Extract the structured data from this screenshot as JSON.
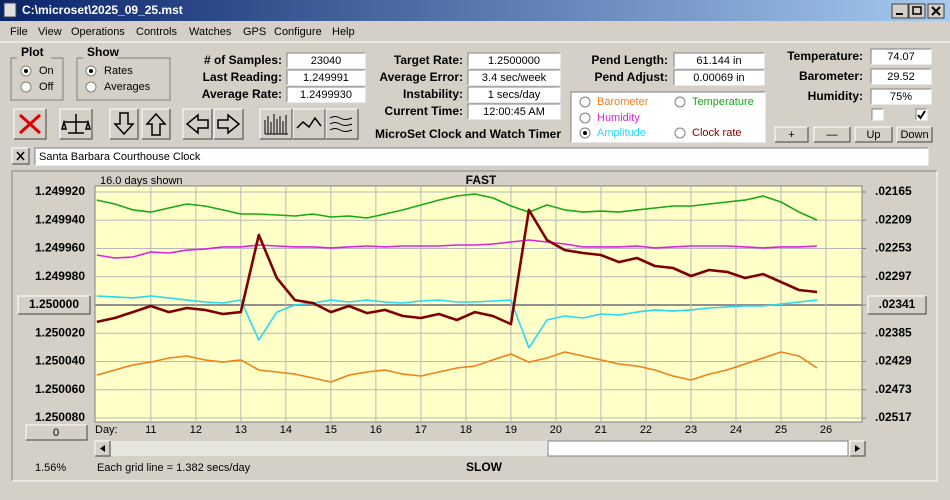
{
  "window": {
    "title": "C:\\microset\\2025_09_25.mst"
  },
  "menu": [
    "File",
    "View",
    "Operations",
    "Controls",
    "Watches",
    "GPS",
    "Configure",
    "Help"
  ],
  "plot_group": {
    "title": "Plot",
    "options": [
      {
        "label": "On",
        "checked": true
      },
      {
        "label": "Off",
        "checked": false
      }
    ]
  },
  "show_group": {
    "title": "Show",
    "options": [
      {
        "label": "Rates",
        "checked": true
      },
      {
        "label": "Averages",
        "checked": false
      }
    ]
  },
  "fields": [
    {
      "label": "# of Samples:",
      "value": "23040"
    },
    {
      "label": "Last Reading:",
      "value": "1.249991"
    },
    {
      "label": "Average Rate:",
      "value": "1.2499930"
    },
    {
      "label": "Target Rate:",
      "value": "1.2500000"
    },
    {
      "label": "Average Error:",
      "value": "3.4 sec/week"
    },
    {
      "label": "Instability:",
      "value": "1 secs/day"
    },
    {
      "label": "Current Time:",
      "value": "12:00:45 AM"
    },
    {
      "label": "Pend Length:",
      "value": "61.144 in"
    },
    {
      "label": "Pend Adjust:",
      "value": "0.00069 in"
    },
    {
      "label": "Temperature:",
      "value": "74.07"
    },
    {
      "label": "Barometer:",
      "value": "29.52"
    },
    {
      "label": "Humidity:",
      "value": "75%"
    }
  ],
  "heading": "MicroSet Clock and Watch Timer",
  "checkboxes": [
    false,
    true
  ],
  "buttons": [
    "+",
    "—",
    "Up",
    "Down"
  ],
  "clock_name": "Santa Barbara Courthouse Clock",
  "status": {
    "percent": "1.56%",
    "offset_button": "0"
  },
  "chart_data": {
    "type": "line",
    "days_shown": "16.0 days shown",
    "top_label": "FAST",
    "bottom_label": "SLOW",
    "grid_note": "Each grid line = 1.382 secs/day",
    "x_label": "Day:",
    "xlim": [
      9.76,
      26.8
    ],
    "xticks": [
      11,
      12,
      13,
      14,
      15,
      16,
      17,
      18,
      19,
      20,
      21,
      22,
      23,
      24,
      25,
      26
    ],
    "ylim": [
      1.24992,
      1.25008
    ],
    "y_inverted": true,
    "yticks": [
      {
        "value": 1.24992,
        "label": "1.249920"
      },
      {
        "value": 1.24994,
        "label": "1.249940"
      },
      {
        "value": 1.24996,
        "label": "1.249960"
      },
      {
        "value": 1.24998,
        "label": "1.249980"
      },
      {
        "value": 1.25,
        "label": "1.250000"
      },
      {
        "value": 1.25002,
        "label": "1.250020"
      },
      {
        "value": 1.25004,
        "label": "1.250040"
      },
      {
        "value": 1.25006,
        "label": "1.250060"
      },
      {
        "value": 1.25008,
        "label": "1.250080"
      }
    ],
    "y2lim": [
      0.02165,
      0.02517
    ],
    "y2ticks": [
      {
        "value": 0.02165,
        "label": ".02165"
      },
      {
        "value": 0.02209,
        "label": ".02209"
      },
      {
        "value": 0.02253,
        "label": ".02253"
      },
      {
        "value": 0.02297,
        "label": ".02297"
      },
      {
        "value": 0.02341,
        "label": ".02341"
      },
      {
        "value": 0.02385,
        "label": ".02385"
      },
      {
        "value": 0.02429,
        "label": ".02429"
      },
      {
        "value": 0.02473,
        "label": ".02473"
      },
      {
        "value": 0.02517,
        "label": ".02517"
      }
    ],
    "grid": true,
    "x": [
      9.8,
      10.2,
      10.6,
      11,
      11.4,
      11.8,
      12.2,
      12.6,
      13,
      13.4,
      13.8,
      14.2,
      14.6,
      15,
      15.4,
      15.8,
      16.2,
      16.6,
      17,
      17.4,
      17.8,
      18.2,
      18.6,
      19,
      19.4,
      19.8,
      20.2,
      20.6,
      21,
      21.4,
      21.8,
      22.2,
      22.6,
      23,
      23.4,
      23.8,
      24.2,
      24.6,
      25,
      25.4,
      25.8
    ],
    "series": [
      {
        "name": "Barometer",
        "color": "#f08018",
        "selected": false,
        "values": [
          1.2500496,
          1.250046,
          1.2500425,
          1.2500404,
          1.2500375,
          1.2500361,
          1.2500389,
          1.2500404,
          1.2500389,
          1.250046,
          1.2500474,
          1.2500489,
          1.2500517,
          1.2500545,
          1.2500496,
          1.2500474,
          1.250046,
          1.2500489,
          1.2500503,
          1.2500474,
          1.2500446,
          1.2500432,
          1.2500389,
          1.2500347,
          1.2500404,
          1.2500375,
          1.2500333,
          1.2500361,
          1.2500389,
          1.2500418,
          1.2500432,
          1.250046,
          1.2500503,
          1.2500531,
          1.2500489,
          1.250046,
          1.2500418,
          1.2500375,
          1.2500333,
          1.2500361,
          1.2500446
        ]
      },
      {
        "name": "Temperature",
        "color": "#18a818",
        "selected": false,
        "values": [
          1.2499257,
          1.2499285,
          1.2499327,
          1.2499342,
          1.2499313,
          1.2499285,
          1.2499299,
          1.2499327,
          1.2499356,
          1.2499356,
          1.2499363,
          1.249937,
          1.2499356,
          1.2499377,
          1.249937,
          1.2499384,
          1.2499356,
          1.2499327,
          1.2499292,
          1.2499257,
          1.2499228,
          1.2499214,
          1.2499242,
          1.2499299,
          1.2499342,
          1.2499292,
          1.2499327,
          1.2499342,
          1.2499335,
          1.2499342,
          1.2499327,
          1.2499313,
          1.2499299,
          1.2499299,
          1.2499285,
          1.2499271,
          1.2499257,
          1.2499228,
          1.2499271,
          1.2499342,
          1.2499398
        ]
      },
      {
        "name": "Humidity",
        "color": "#e020e0",
        "selected": false,
        "values": [
          1.2499646,
          1.2499667,
          1.249966,
          1.2499625,
          1.2499632,
          1.2499611,
          1.2499604,
          1.2499589,
          1.2499589,
          1.2499575,
          1.2499582,
          1.2499589,
          1.2499589,
          1.2499596,
          1.2499589,
          1.2499582,
          1.2499589,
          1.2499582,
          1.2499582,
          1.2499582,
          1.2499575,
          1.2499575,
          1.2499568,
          1.2499554,
          1.249954,
          1.2499554,
          1.2499568,
          1.2499589,
          1.2499589,
          1.2499589,
          1.2499582,
          1.2499596,
          1.2499589,
          1.2499582,
          1.2499582,
          1.2499582,
          1.2499589,
          1.2499596,
          1.2499589,
          1.2499589,
          1.2499582
        ]
      },
      {
        "name": "Amplitude",
        "color": "#28d8f0",
        "selected": true,
        "values": [
          1.2499936,
          1.2499943,
          1.249995,
          1.2499936,
          1.249995,
          1.2499965,
          1.2499979,
          1.2499986,
          1.2499965,
          1.2500248,
          1.250005,
          1.25,
          1.2499986,
          1.2499965,
          1.2499979,
          1.2499965,
          1.2499979,
          1.2499986,
          1.2499972,
          1.2499965,
          1.2499979,
          1.2499979,
          1.2499972,
          1.2499965,
          1.2500304,
          1.2500106,
          1.2500078,
          1.2500092,
          1.2500064,
          1.2500071,
          1.250005,
          1.2500035,
          1.2500043,
          1.2500035,
          1.2500021,
          1.2500014,
          1.2500007,
          1.2500007,
          1.2499993,
          1.2499979,
          1.2499965
        ]
      },
      {
        "name": "Clock rate",
        "color": "#800000",
        "selected": false,
        "values": [
          1.250012,
          1.2500092,
          1.250005,
          1.2500007,
          1.250005,
          1.2500021,
          1.2500035,
          1.2500064,
          1.250005,
          1.2499504,
          1.2499809,
          1.2499965,
          1.2499986,
          1.250005,
          1.2500007,
          1.2500057,
          1.2500035,
          1.2500078,
          1.2500092,
          1.2500064,
          1.2500106,
          1.250005,
          1.2500078,
          1.2500135,
          1.2499327,
          1.249954,
          1.2499611,
          1.2499632,
          1.2499646,
          1.2499696,
          1.2499667,
          1.2499724,
          1.2499738,
          1.2499795,
          1.2499752,
          1.2499766,
          1.2499809,
          1.2499781,
          1.2499837,
          1.2499894,
          1.2499908
        ]
      }
    ]
  }
}
